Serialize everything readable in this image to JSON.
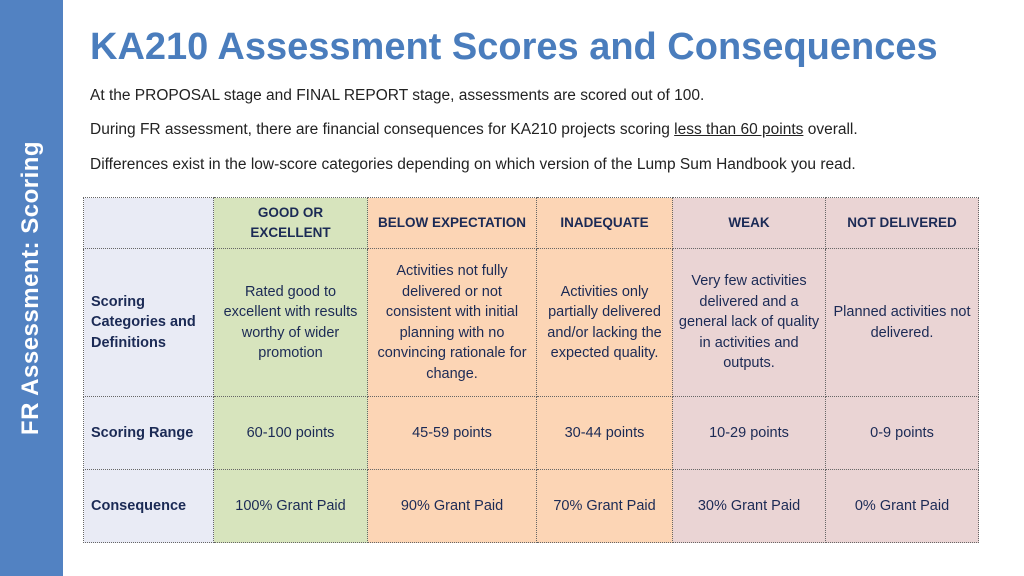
{
  "sidebar": {
    "label": "FR Assessment: Scoring"
  },
  "title": "KA210 Assessment Scores and Consequences",
  "paragraphs": {
    "p1": "At the PROPOSAL stage and FINAL REPORT stage, assessments are scored out of 100.",
    "p2_before": "During FR assessment, there are financial consequences for KA210 projects scoring ",
    "p2_underlined": "less than 60 points",
    "p2_after": " overall.",
    "p3": "Differences exist in the low-score categories depending on which version of the Lump Sum Handbook you read."
  },
  "colors": {
    "sidebar": "#5282c2",
    "title": "#4a7dbd",
    "label_col": "#e9ebf5",
    "good": "#d7e4bd",
    "below": "#fcd5b5",
    "inadequate": "#fcd5b5",
    "weak": "#ead4d4",
    "not_delivered": "#ead4d4"
  },
  "table": {
    "headers": [
      "GOOD OR EXCELLENT",
      "BELOW EXPECTATION",
      "INADEQUATE",
      "WEAK",
      "NOT DELIVERED"
    ],
    "rows": [
      {
        "label": "Scoring Categories and Definitions",
        "cells": [
          "Rated good to excellent with results worthy of wider promotion",
          "Activities not fully delivered or not consistent with initial planning with no convincing rationale for change.",
          "Activities only partially delivered and/or lacking the expected quality.",
          "Very few activities delivered and a general lack of quality in activities and outputs.",
          "Planned activities not delivered."
        ]
      },
      {
        "label": "Scoring Range",
        "cells": [
          "60-100 points",
          "45-59 points",
          "30-44 points",
          "10-29 points",
          "0-9 points"
        ]
      },
      {
        "label": "Consequence",
        "cells": [
          "100% Grant Paid",
          "90% Grant Paid",
          "70% Grant Paid",
          "30% Grant Paid",
          "0% Grant Paid"
        ]
      }
    ]
  }
}
